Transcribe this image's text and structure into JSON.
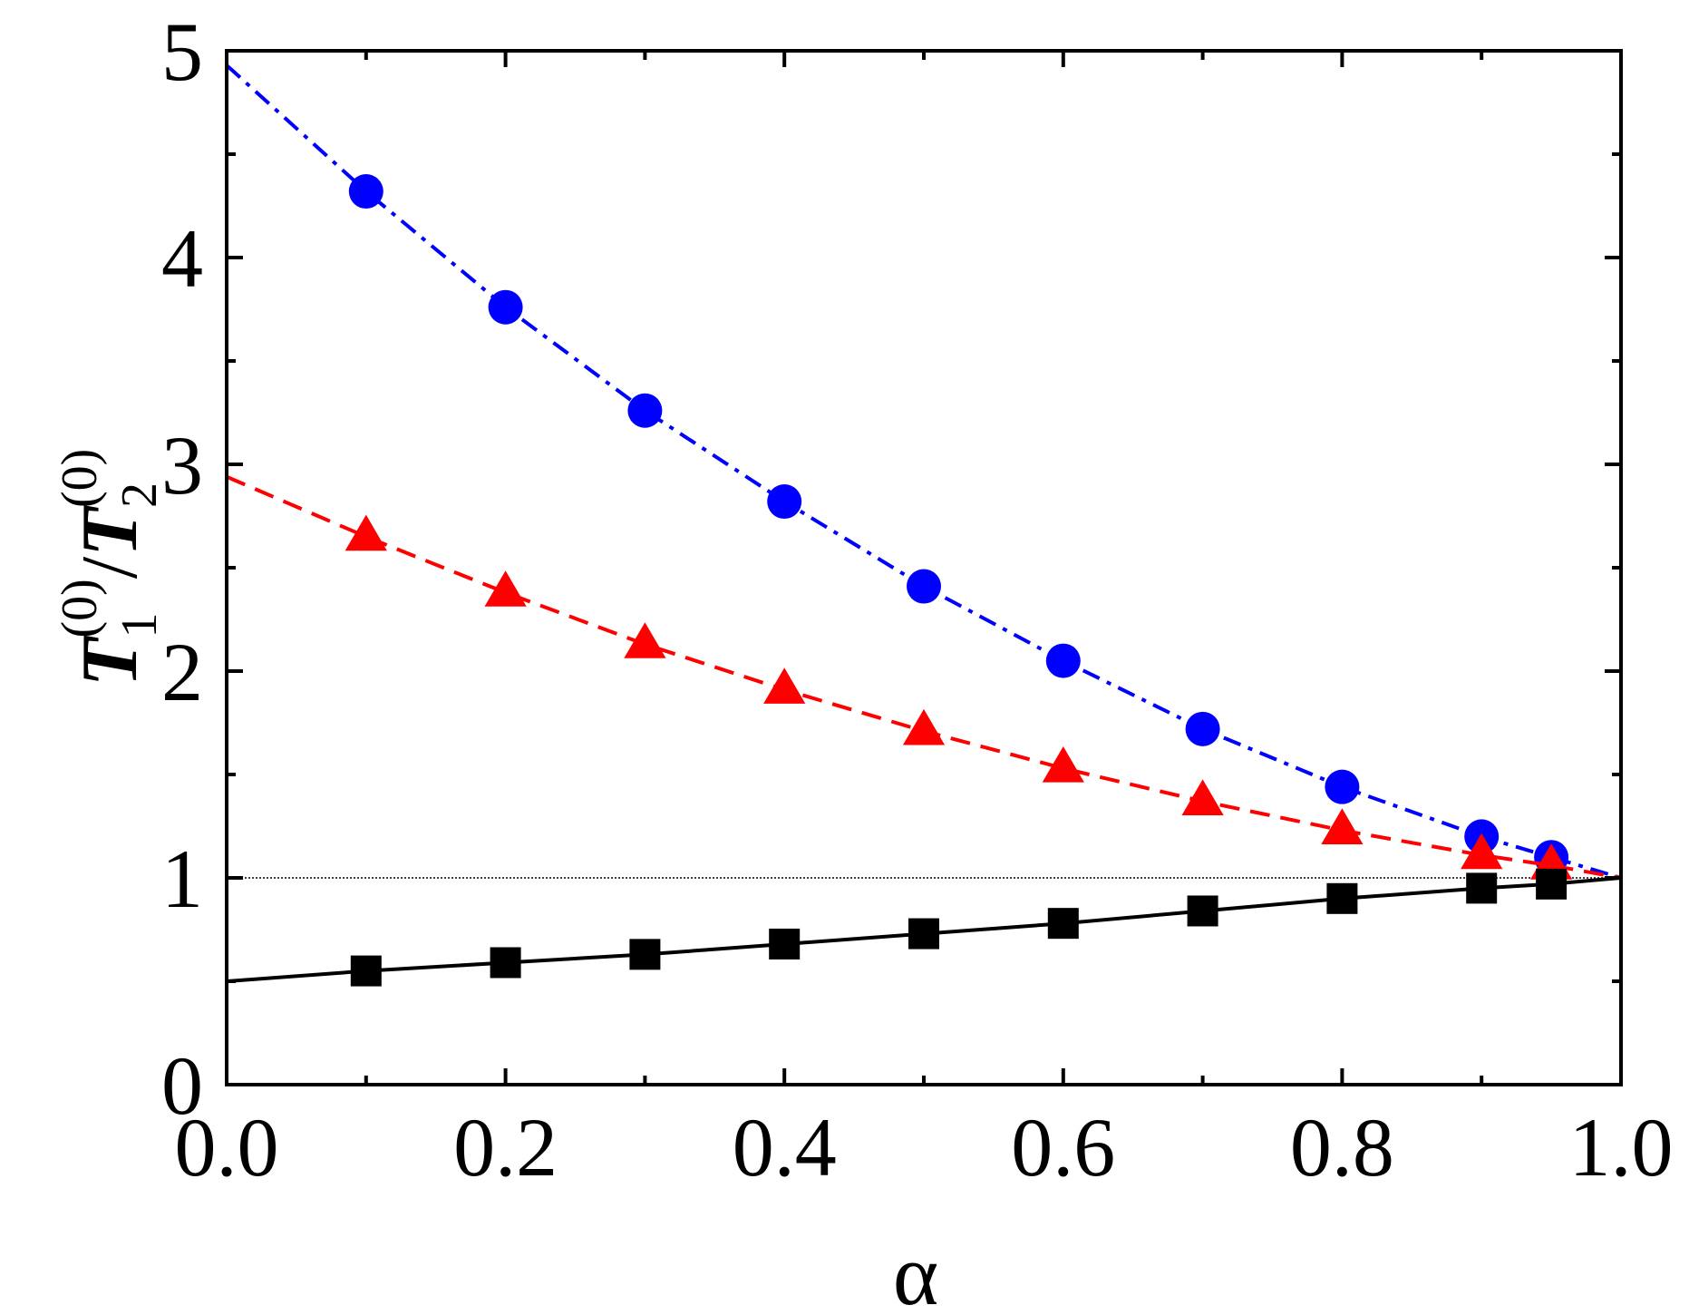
{
  "chart_data": {
    "type": "scatter",
    "xlabel": "α",
    "ylabel": {
      "main1": "T",
      "sub1": "1",
      "sup1": "(0)",
      "slash": "/",
      "main2": "T",
      "sub2": "2",
      "sup2": "(0)"
    },
    "xlim": [
      0,
      1
    ],
    "ylim": [
      0,
      5
    ],
    "x_ticks": [
      0.0,
      0.2,
      0.4,
      0.6,
      0.8,
      1.0
    ],
    "x_tick_labels": [
      "0.0",
      "0.2",
      "0.4",
      "0.6",
      "0.8",
      "1.0"
    ],
    "y_ticks": [
      0,
      1,
      2,
      3,
      4,
      5
    ],
    "y_tick_labels": [
      "0",
      "1",
      "2",
      "3",
      "4",
      "5"
    ],
    "grid": false,
    "reference_line": {
      "y": 1,
      "style": "dotted",
      "color": "#000000"
    },
    "series": [
      {
        "marker": "circle",
        "color": "#0000ff",
        "line_style": "dash-dot",
        "points": {
          "x": [
            0.1,
            0.2,
            0.3,
            0.4,
            0.5,
            0.6,
            0.7,
            0.8,
            0.9,
            0.95
          ],
          "y": [
            4.32,
            3.76,
            3.26,
            2.82,
            2.41,
            2.05,
            1.72,
            1.44,
            1.2,
            1.1
          ]
        },
        "curve": {
          "x": [
            0.0,
            0.1,
            0.2,
            0.3,
            0.4,
            0.5,
            0.6,
            0.7,
            0.8,
            0.9,
            0.95,
            1.0
          ],
          "y": [
            4.93,
            4.32,
            3.76,
            3.26,
            2.82,
            2.41,
            2.05,
            1.72,
            1.44,
            1.2,
            1.1,
            1.0
          ]
        }
      },
      {
        "marker": "triangle",
        "color": "#ff0000",
        "line_style": "dashed",
        "points": {
          "x": [
            0.1,
            0.2,
            0.3,
            0.4,
            0.5,
            0.6,
            0.7,
            0.8,
            0.9,
            0.95
          ],
          "y": [
            2.65,
            2.38,
            2.13,
            1.91,
            1.71,
            1.53,
            1.37,
            1.23,
            1.11,
            1.06
          ]
        },
        "curve": {
          "x": [
            0.0,
            0.1,
            0.2,
            0.3,
            0.4,
            0.5,
            0.6,
            0.7,
            0.8,
            0.9,
            0.95,
            1.0
          ],
          "y": [
            2.94,
            2.65,
            2.38,
            2.13,
            1.91,
            1.71,
            1.53,
            1.37,
            1.23,
            1.11,
            1.06,
            1.0
          ]
        }
      },
      {
        "marker": "square",
        "color": "#000000",
        "line_style": "solid",
        "points": {
          "x": [
            0.1,
            0.2,
            0.3,
            0.4,
            0.5,
            0.6,
            0.7,
            0.8,
            0.9,
            0.95
          ],
          "y": [
            0.55,
            0.59,
            0.63,
            0.68,
            0.73,
            0.78,
            0.84,
            0.9,
            0.95,
            0.97
          ]
        },
        "curve": {
          "x": [
            0.0,
            0.1,
            0.2,
            0.3,
            0.4,
            0.5,
            0.6,
            0.7,
            0.8,
            0.9,
            0.95,
            1.0
          ],
          "y": [
            0.5,
            0.55,
            0.59,
            0.63,
            0.68,
            0.73,
            0.78,
            0.84,
            0.9,
            0.95,
            0.97,
            1.0
          ]
        }
      }
    ]
  }
}
